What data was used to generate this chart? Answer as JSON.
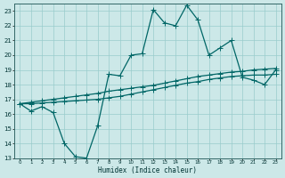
{
  "background_color": "#cce8e8",
  "grid_color": "#99cccc",
  "line_color": "#006666",
  "xlabel": "Humidex (Indice chaleur)",
  "xlim": [
    -0.5,
    23.5
  ],
  "ylim": [
    13,
    23.5
  ],
  "yticks": [
    13,
    14,
    15,
    16,
    17,
    18,
    19,
    20,
    21,
    22,
    23
  ],
  "xticks": [
    0,
    1,
    2,
    3,
    4,
    5,
    6,
    7,
    8,
    9,
    10,
    11,
    12,
    13,
    14,
    15,
    16,
    17,
    18,
    19,
    20,
    21,
    22,
    23
  ],
  "line1_x": [
    0,
    1,
    2,
    3,
    4,
    5,
    6,
    7,
    8,
    9,
    10,
    11,
    12,
    13,
    14,
    15,
    16,
    17,
    18,
    19,
    20,
    21,
    22,
    23
  ],
  "line1_y": [
    16.7,
    16.2,
    16.5,
    16.1,
    14.0,
    13.1,
    13.0,
    15.2,
    18.7,
    18.6,
    20.0,
    20.1,
    23.1,
    22.2,
    22.0,
    23.4,
    22.4,
    20.0,
    20.5,
    21.0,
    18.5,
    18.3,
    18.0,
    19.0
  ],
  "line2_x": [
    0,
    1,
    2,
    3,
    4,
    5,
    6,
    7,
    8,
    9,
    10,
    11,
    12,
    13,
    14,
    15,
    16,
    17,
    18,
    19,
    20,
    21,
    22,
    23
  ],
  "line2_y": [
    16.7,
    16.8,
    16.9,
    17.0,
    17.1,
    17.2,
    17.3,
    17.4,
    17.55,
    17.65,
    17.75,
    17.85,
    17.95,
    18.1,
    18.25,
    18.4,
    18.55,
    18.65,
    18.75,
    18.85,
    18.9,
    19.0,
    19.05,
    19.1
  ],
  "line3_x": [
    0,
    1,
    2,
    3,
    4,
    5,
    6,
    7,
    8,
    9,
    10,
    11,
    12,
    13,
    14,
    15,
    16,
    17,
    18,
    19,
    20,
    21,
    22,
    23
  ],
  "line3_y": [
    16.7,
    16.7,
    16.75,
    16.8,
    16.85,
    16.9,
    16.95,
    17.0,
    17.1,
    17.2,
    17.35,
    17.5,
    17.65,
    17.8,
    17.95,
    18.1,
    18.2,
    18.35,
    18.45,
    18.55,
    18.6,
    18.65,
    18.65,
    18.7
  ],
  "marker_size": 2.5,
  "linewidth": 0.9
}
